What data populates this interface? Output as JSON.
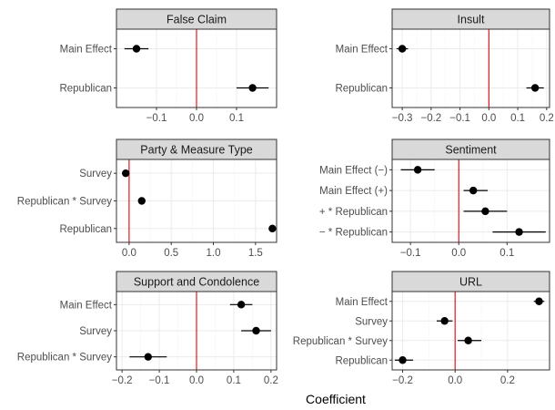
{
  "colors": {
    "strip_fill": "#d9d9d9",
    "panel_border": "#333333",
    "grid_major": "#ebebeb",
    "grid_minor": "#f5f5f5",
    "reference_line": "#e41a1c",
    "point": "#000000"
  },
  "chart_data": {
    "type": "scatter",
    "xlabel": "Coefficient",
    "ylabel": "",
    "grid": true,
    "layout": "faceted 3 rows x 2 columns, free x scales",
    "reference_x": 0,
    "panels": [
      {
        "title": "False Claim",
        "categories": [
          "Main Effect",
          "Republican"
        ],
        "values": [
          -0.15,
          0.14
        ],
        "ci": [
          [
            -0.18,
            -0.12
          ],
          [
            0.1,
            0.18
          ]
        ],
        "xlim": [
          -0.2,
          0.2
        ],
        "xticks": [
          -0.1,
          0.0,
          0.1
        ],
        "xtick_labels": [
          "−0.1",
          "0.0",
          "0.1"
        ]
      },
      {
        "title": "Insult",
        "categories": [
          "Main Effect",
          "Republican"
        ],
        "values": [
          -0.3,
          0.16
        ],
        "ci": [
          [
            -0.32,
            -0.28
          ],
          [
            0.13,
            0.19
          ]
        ],
        "xlim": [
          -0.335,
          0.21
        ],
        "xticks": [
          -0.3,
          -0.2,
          -0.1,
          0.0,
          0.1,
          0.2
        ],
        "xtick_labels": [
          "−0.3",
          "−0.2",
          "−0.1",
          "0.0",
          "0.1",
          "0.2"
        ]
      },
      {
        "title": "Party & Measure Type",
        "categories": [
          "Survey",
          "Republican * Survey",
          "Republican"
        ],
        "values": [
          -0.04,
          0.15,
          1.7
        ],
        "ci": [
          [
            -0.07,
            -0.01
          ],
          [
            0.11,
            0.19
          ],
          [
            1.68,
            1.72
          ]
        ],
        "xlim": [
          -0.15,
          1.75
        ],
        "xticks": [
          0.0,
          0.5,
          1.0,
          1.5
        ],
        "xtick_labels": [
          "0.0",
          "0.5",
          "1.0",
          "1.5"
        ]
      },
      {
        "title": "Sentiment",
        "categories": [
          "Main Effect (−)",
          "Main Effect (+)",
          "+ * Republican",
          "− * Republican"
        ],
        "values": [
          -0.085,
          0.03,
          0.055,
          0.125
        ],
        "ci": [
          [
            -0.12,
            -0.05
          ],
          [
            0.01,
            0.06
          ],
          [
            0.01,
            0.1
          ],
          [
            0.07,
            0.18
          ]
        ],
        "xlim": [
          -0.138,
          0.188
        ],
        "xticks": [
          -0.1,
          0.0,
          0.1
        ],
        "xtick_labels": [
          "−0.1",
          "0.0",
          "0.1"
        ]
      },
      {
        "title": "Support and Condolence",
        "categories": [
          "Main Effect",
          "Survey",
          "Republican * Survey"
        ],
        "values": [
          0.12,
          0.16,
          -0.13
        ],
        "ci": [
          [
            0.09,
            0.15
          ],
          [
            0.12,
            0.2
          ],
          [
            -0.18,
            -0.08
          ]
        ],
        "xlim": [
          -0.215,
          0.215
        ],
        "xticks": [
          -0.2,
          -0.1,
          0.0,
          0.1,
          0.2
        ],
        "xtick_labels": [
          "−0.2",
          "−0.1",
          "0.0",
          "0.1",
          "0.2"
        ]
      },
      {
        "title": "URL",
        "categories": [
          "Main Effect",
          "Survey",
          "Republican * Survey",
          "Republican"
        ],
        "values": [
          0.32,
          -0.04,
          0.05,
          -0.2
        ],
        "ci": [
          [
            0.3,
            0.34
          ],
          [
            -0.07,
            -0.01
          ],
          [
            0.01,
            0.1
          ],
          [
            -0.23,
            -0.16
          ]
        ],
        "xlim": [
          -0.24,
          0.36
        ],
        "xticks": [
          -0.2,
          0.0,
          0.2
        ],
        "xtick_labels": [
          "−0.2",
          "0.0",
          "0.2"
        ]
      }
    ]
  }
}
